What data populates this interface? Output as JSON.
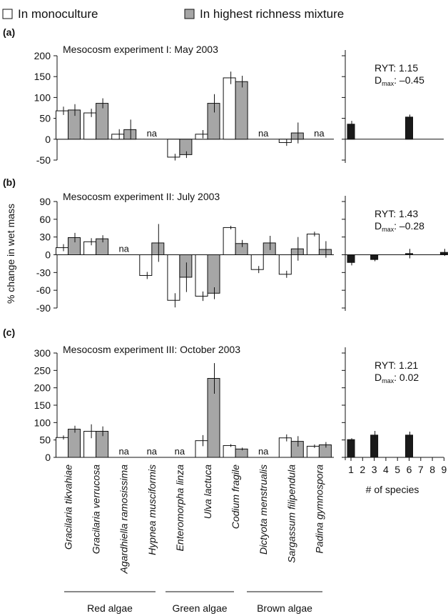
{
  "legend": {
    "monoculture": "In monoculture",
    "mixture": "In highest richness mixture"
  },
  "y_axis_label": "% change in wet mass",
  "x_axis_label_right": "# of species",
  "species": [
    "Gracilaria tikvahiae",
    "Gracilaria verrucosa",
    "Agardhiella ramosissima",
    "Hypnea musciformis",
    "Enteromorpha linza",
    "Ulva lactuca",
    "Codium fragile",
    "Dictyota menstrualis",
    "Sargassum filipendula",
    "Padina gymnospora"
  ],
  "groups": [
    {
      "name": "Red algae",
      "members": [
        0,
        1,
        2,
        3
      ]
    },
    {
      "name": "Green algae",
      "members": [
        4,
        5,
        6
      ]
    },
    {
      "name": "Brown algae",
      "members": [
        7,
        8,
        9
      ]
    }
  ],
  "na_label": "na",
  "dmax_symbol": "D",
  "dmax_subscript": "max",
  "colors": {
    "monoculture": "#ffffff",
    "mixture": "#a6a6a6",
    "richness": "#1a1a1a"
  },
  "chart_data": [
    {
      "type": "bar",
      "panel_label": "(a)",
      "title": "Mesocosm experiment I: May 2003",
      "ylim": [
        -50,
        200
      ],
      "yticks": [
        -50,
        0,
        50,
        100,
        150,
        200
      ],
      "categories": [
        "Gracilaria tikvahiae",
        "Gracilaria verrucosa",
        "Agardhiella ramosissima",
        "Hypnea musciformis",
        "Enteromorpha linza",
        "Ulva lactuca",
        "Codium fragile",
        "Dictyota menstrualis",
        "Sargassum filipendula",
        "Padina gymnospora"
      ],
      "series": [
        {
          "name": "In monoculture",
          "values": [
            68,
            63,
            12,
            null,
            -43,
            12,
            147,
            null,
            -8,
            null
          ],
          "errors": [
            10,
            10,
            12,
            null,
            8,
            10,
            15,
            null,
            8,
            null
          ]
        },
        {
          "name": "In highest richness mixture",
          "values": [
            70,
            86,
            23,
            null,
            -37,
            86,
            138,
            null,
            15,
            null
          ],
          "errors": [
            14,
            12,
            24,
            null,
            8,
            22,
            14,
            null,
            25,
            null
          ]
        }
      ],
      "na_indices": [
        3,
        7,
        9
      ],
      "ryt": "RYT: 1.15",
      "dmax": ": –0.45",
      "richness": {
        "x": [
          1,
          6
        ],
        "values": [
          36,
          53
        ],
        "errors": [
          8,
          6
        ]
      }
    },
    {
      "type": "bar",
      "panel_label": "(b)",
      "title": "Mesocosm experiment II: July 2003",
      "ylim": [
        -90,
        90
      ],
      "yticks": [
        -90,
        -60,
        -30,
        0,
        30,
        60,
        90
      ],
      "categories": [
        "Gracilaria tikvahiae",
        "Gracilaria verrucosa",
        "Agardhiella ramosissima",
        "Hypnea musciformis",
        "Enteromorpha linza",
        "Ulva lactuca",
        "Codium fragile",
        "Dictyota menstrualis",
        "Sargassum filipendula",
        "Padina gymnospora"
      ],
      "series": [
        {
          "name": "In monoculture",
          "values": [
            12,
            22,
            null,
            -35,
            -77,
            -70,
            46,
            -25,
            -33,
            35
          ],
          "errors": [
            6,
            6,
            null,
            6,
            12,
            8,
            3,
            6,
            6,
            4
          ]
        },
        {
          "name": "In highest richness mixture",
          "values": [
            29,
            27,
            null,
            20,
            -38,
            -65,
            19,
            20,
            10,
            9
          ],
          "errors": [
            8,
            6,
            null,
            32,
            25,
            10,
            6,
            12,
            20,
            14
          ]
        }
      ],
      "na_indices": [
        2
      ],
      "ryt": "RYT: 1.43",
      "dmax": ": –0.28",
      "richness": {
        "x": [
          1,
          3,
          6,
          9
        ],
        "values": [
          -13,
          -8,
          2,
          4
        ],
        "errors": [
          5,
          3,
          8,
          6
        ]
      }
    },
    {
      "type": "bar",
      "panel_label": "(c)",
      "title": "Mesocosm experiment III: October 2003",
      "ylim": [
        0,
        300
      ],
      "yticks": [
        0,
        50,
        100,
        150,
        200,
        250,
        300
      ],
      "categories": [
        "Gracilaria tikvahiae",
        "Gracilaria verrucosa",
        "Agardhiella ramosissima",
        "Hypnea musciformis",
        "Enteromorpha linza",
        "Ulva lactuca",
        "Codium fragile",
        "Dictyota menstrualis",
        "Sargassum filipendula",
        "Padina gymnospora"
      ],
      "series": [
        {
          "name": "In monoculture",
          "values": [
            57,
            75,
            null,
            null,
            null,
            48,
            34,
            null,
            56,
            32
          ],
          "errors": [
            6,
            20,
            null,
            null,
            null,
            16,
            4,
            null,
            10,
            5
          ]
        },
        {
          "name": "In highest richness mixture",
          "values": [
            81,
            75,
            null,
            null,
            null,
            227,
            24,
            null,
            46,
            36
          ],
          "errors": [
            10,
            14,
            null,
            null,
            null,
            44,
            4,
            null,
            15,
            8
          ]
        }
      ],
      "na_indices": [
        2,
        3,
        4,
        7
      ],
      "ryt": "RYT: 1.21",
      "dmax": ": 0.02",
      "richness": {
        "x": [
          1,
          3,
          6
        ],
        "values": [
          51,
          64,
          64
        ],
        "errors": [
          4,
          12,
          10
        ]
      }
    }
  ],
  "richness_xticks": [
    1,
    2,
    3,
    4,
    5,
    6,
    7,
    8,
    9
  ]
}
